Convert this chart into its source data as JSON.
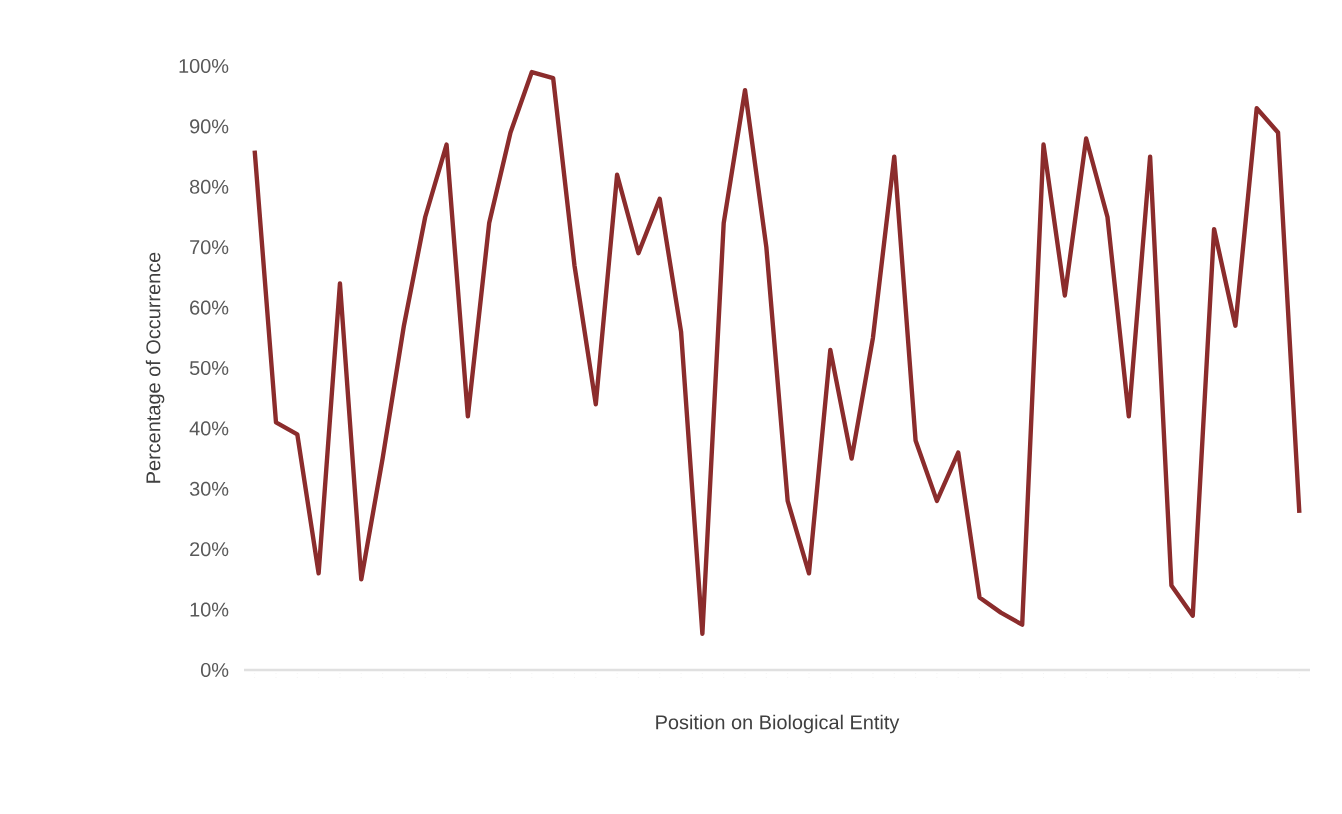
{
  "chart_data": {
    "type": "line",
    "xlabel": "Position on Biological Entity",
    "ylabel": "Percentage of Occurrence",
    "categories": [
      null,
      null,
      null,
      null,
      null,
      null,
      null,
      null,
      null,
      null,
      null,
      null,
      null,
      null,
      null,
      null,
      null,
      null,
      null,
      null,
      null,
      null,
      null,
      null,
      null,
      null,
      null,
      null,
      null,
      null,
      null,
      null,
      null,
      null,
      null,
      null,
      null,
      null,
      null,
      null,
      null,
      null,
      null,
      null,
      null,
      null,
      null,
      null,
      null,
      null
    ],
    "series": [
      {
        "color": "#8b2c2c",
        "values": [
          86,
          41,
          39,
          16,
          64,
          15,
          35,
          57,
          75,
          87,
          42,
          74,
          89,
          99,
          98,
          67,
          44,
          82,
          69,
          78,
          56,
          6,
          74,
          96,
          70,
          28,
          16,
          53,
          35,
          55,
          85,
          38,
          28,
          36,
          12,
          9.5,
          7.5,
          87,
          62,
          88,
          75,
          42,
          85,
          14,
          9,
          73,
          57,
          93,
          89,
          26
        ]
      }
    ],
    "ylim": [
      0,
      100
    ],
    "yticks": [
      {
        "value": 0,
        "label": "0%"
      },
      {
        "value": 10,
        "label": "10%"
      },
      {
        "value": 20,
        "label": "20%"
      },
      {
        "value": 30,
        "label": "30%"
      },
      {
        "value": 40,
        "label": "40%"
      },
      {
        "value": 50,
        "label": "50%"
      },
      {
        "value": 60,
        "label": "60%"
      },
      {
        "value": 70,
        "label": "70%"
      },
      {
        "value": 80,
        "label": "80%"
      },
      {
        "value": 90,
        "label": "90%"
      },
      {
        "value": 100,
        "label": "100%"
      }
    ],
    "grid": false,
    "marker": "none",
    "line_style": "solid"
  }
}
